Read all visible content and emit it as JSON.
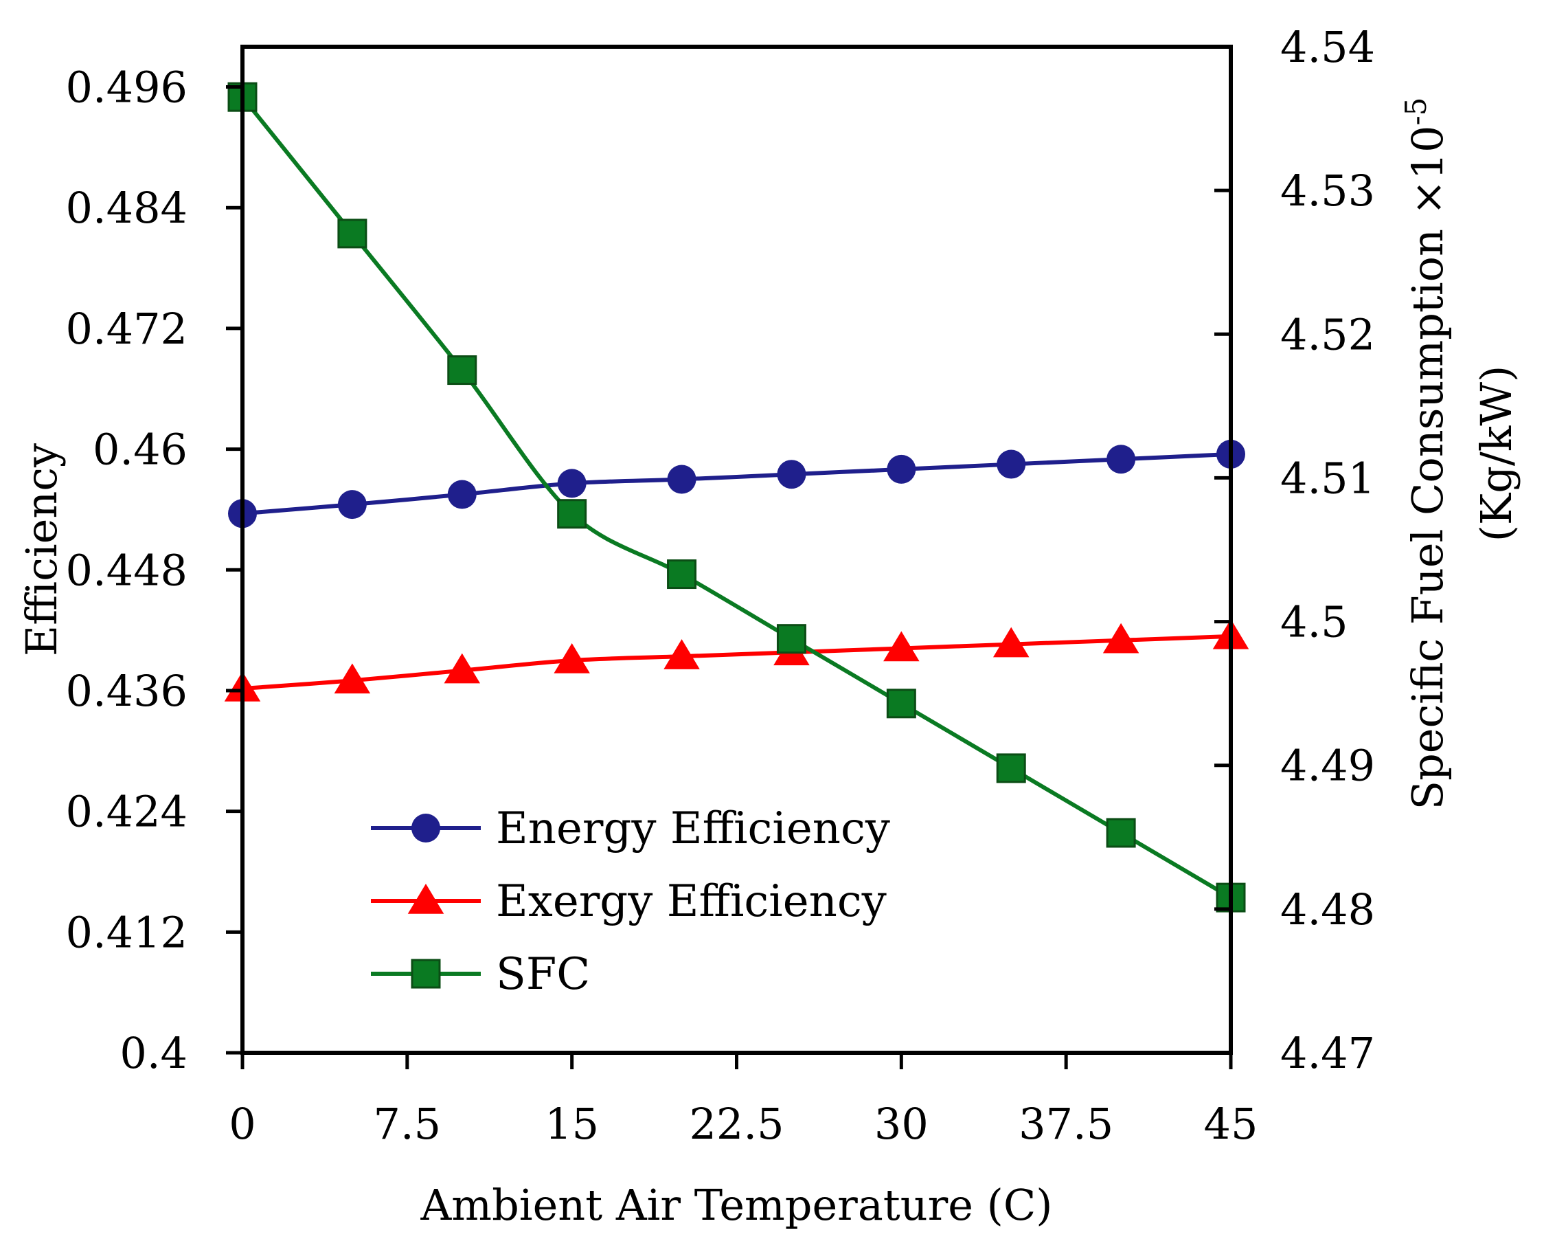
{
  "chart_data": {
    "type": "line",
    "x": [
      0,
      5,
      10,
      15,
      20,
      25,
      30,
      35,
      40,
      45
    ],
    "xlabel": "Ambient Air Temperature (C)",
    "xlim": [
      0,
      45
    ],
    "xticks": [
      "0",
      "7.5",
      "15",
      "22.5",
      "30",
      "37.5",
      "45"
    ],
    "ylabel_left": "Efficiency",
    "ylim_left": [
      0.4,
      0.5
    ],
    "yticks_left": [
      "0.4",
      "0.412",
      "0.424",
      "0.436",
      "0.448",
      "0.46",
      "0.472",
      "0.484",
      "0.496"
    ],
    "ylabel_right_line1": "Specific Fuel Consumption ×10",
    "ylabel_right_exponent": "-5",
    "ylabel_right_line2": "(Kg/kW)",
    "ylim_right": [
      4.47,
      4.54
    ],
    "yticks_right": [
      "4.47",
      "4.48",
      "4.49",
      "4.5",
      "4.51",
      "4.52",
      "4.53",
      "4.54"
    ],
    "legend_position": "lower-left",
    "series": [
      {
        "name": "Energy Efficiency",
        "axis": "left",
        "color": "#1f1f8c",
        "marker": "circle",
        "values": [
          0.4536,
          0.4545,
          0.4555,
          0.4566,
          0.457,
          0.4575,
          0.458,
          0.4585,
          0.459,
          0.4595
        ]
      },
      {
        "name": "Exergy Efficiency",
        "axis": "left",
        "color": "#ff0000",
        "marker": "triangle",
        "values": [
          0.4362,
          0.437,
          0.438,
          0.439,
          0.4394,
          0.4398,
          0.4402,
          0.4406,
          0.441,
          0.4414
        ]
      },
      {
        "name": "SFC",
        "axis": "right",
        "color": "#0a7a22",
        "marker": "square",
        "values": [
          4.5365,
          4.527,
          4.5175,
          4.5075,
          4.5033,
          4.4988,
          4.4943,
          4.4898,
          4.4853,
          4.4808
        ]
      }
    ]
  }
}
